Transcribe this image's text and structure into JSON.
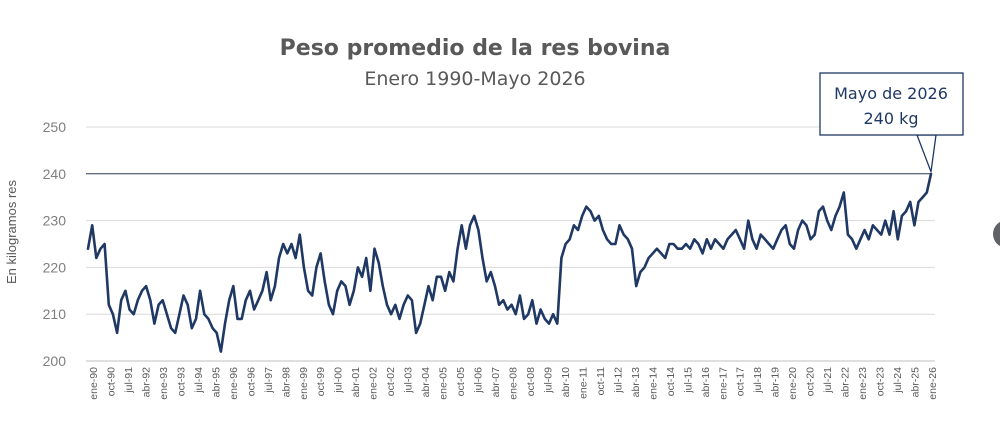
{
  "chart_data": {
    "type": "line",
    "title": "Peso promedio de la res bovina",
    "subtitle": "Enero 1990-Mayo 2026",
    "ylabel": "En kilogramos res",
    "xlabel": "",
    "ylim": [
      200,
      250
    ],
    "yticks": [
      200,
      210,
      220,
      230,
      240,
      250
    ],
    "grid": "horizontal",
    "x_tick_labels": [
      "ene-90",
      "oct-90",
      "jul-91",
      "abr-92",
      "ene-93",
      "oct-93",
      "jul-94",
      "abr-95",
      "ene-96",
      "oct-96",
      "jul-97",
      "abr-98",
      "ene-99",
      "oct-99",
      "jul-00",
      "abr-01",
      "ene-02",
      "oct-02",
      "jul-03",
      "abr-04",
      "ene-05",
      "oct-05",
      "jul-06",
      "abr-07",
      "ene-08",
      "oct-08",
      "jul-09",
      "abr-10",
      "ene-11",
      "oct-11",
      "jul-12",
      "abr-13",
      "ene-14",
      "oct-14",
      "jul-15",
      "abr-16",
      "ene-17",
      "oct-17",
      "jul-18",
      "abr-19",
      "ene-20",
      "oct-20",
      "jul-21",
      "abr-22",
      "ene-23",
      "oct-23",
      "jul-24",
      "abr-25",
      "ene-26"
    ],
    "reference_line": {
      "y": 240
    },
    "series": [
      {
        "color": "#1f3864",
        "x_start": "1990-01",
        "x_end": "2026-05",
        "frequency": "quarterly",
        "values": [
          224,
          229,
          222,
          224,
          225,
          212,
          210,
          206,
          213,
          215,
          211,
          210,
          213,
          215,
          216,
          213,
          208,
          212,
          213,
          210,
          207,
          206,
          210,
          214,
          212,
          207,
          209,
          215,
          210,
          209,
          207,
          206,
          202,
          208,
          213,
          216,
          209,
          209,
          213,
          215,
          211,
          213,
          215,
          219,
          213,
          216,
          222,
          225,
          223,
          225,
          222,
          227,
          220,
          215,
          214,
          220,
          223,
          217,
          212,
          210,
          215,
          217,
          216,
          212,
          215,
          220,
          218,
          222,
          215,
          224,
          221,
          216,
          212,
          210,
          212,
          209,
          212,
          214,
          213,
          206,
          208,
          212,
          216,
          213,
          218,
          218,
          215,
          219,
          217,
          224,
          229,
          224,
          229,
          231,
          228,
          222,
          217,
          219,
          216,
          212,
          213,
          211,
          212,
          210,
          214,
          209,
          210,
          213,
          208,
          211,
          209,
          208,
          210,
          208,
          222,
          225,
          226,
          229,
          228,
          231,
          233,
          232,
          230,
          231,
          228,
          226,
          225,
          225,
          229,
          227,
          226,
          224,
          216,
          219,
          220,
          222,
          223,
          224,
          223,
          222,
          225,
          225,
          224,
          224,
          225,
          224,
          226,
          225,
          223,
          226,
          224,
          226,
          225,
          224,
          226,
          227,
          228,
          226,
          224,
          230,
          226,
          224,
          227,
          226,
          225,
          224,
          226,
          228,
          229,
          225,
          224,
          228,
          230,
          229,
          226,
          227,
          232,
          233,
          230,
          228,
          231,
          233,
          236,
          227,
          226,
          224,
          226,
          228,
          226,
          229,
          228,
          227,
          230,
          227,
          232,
          226,
          231,
          232,
          234,
          229,
          234,
          235,
          236,
          240
        ]
      }
    ],
    "annotation": {
      "line1": "Mayo de 2026",
      "line2": "240 kg",
      "x": "2026-05",
      "y": 240
    }
  }
}
